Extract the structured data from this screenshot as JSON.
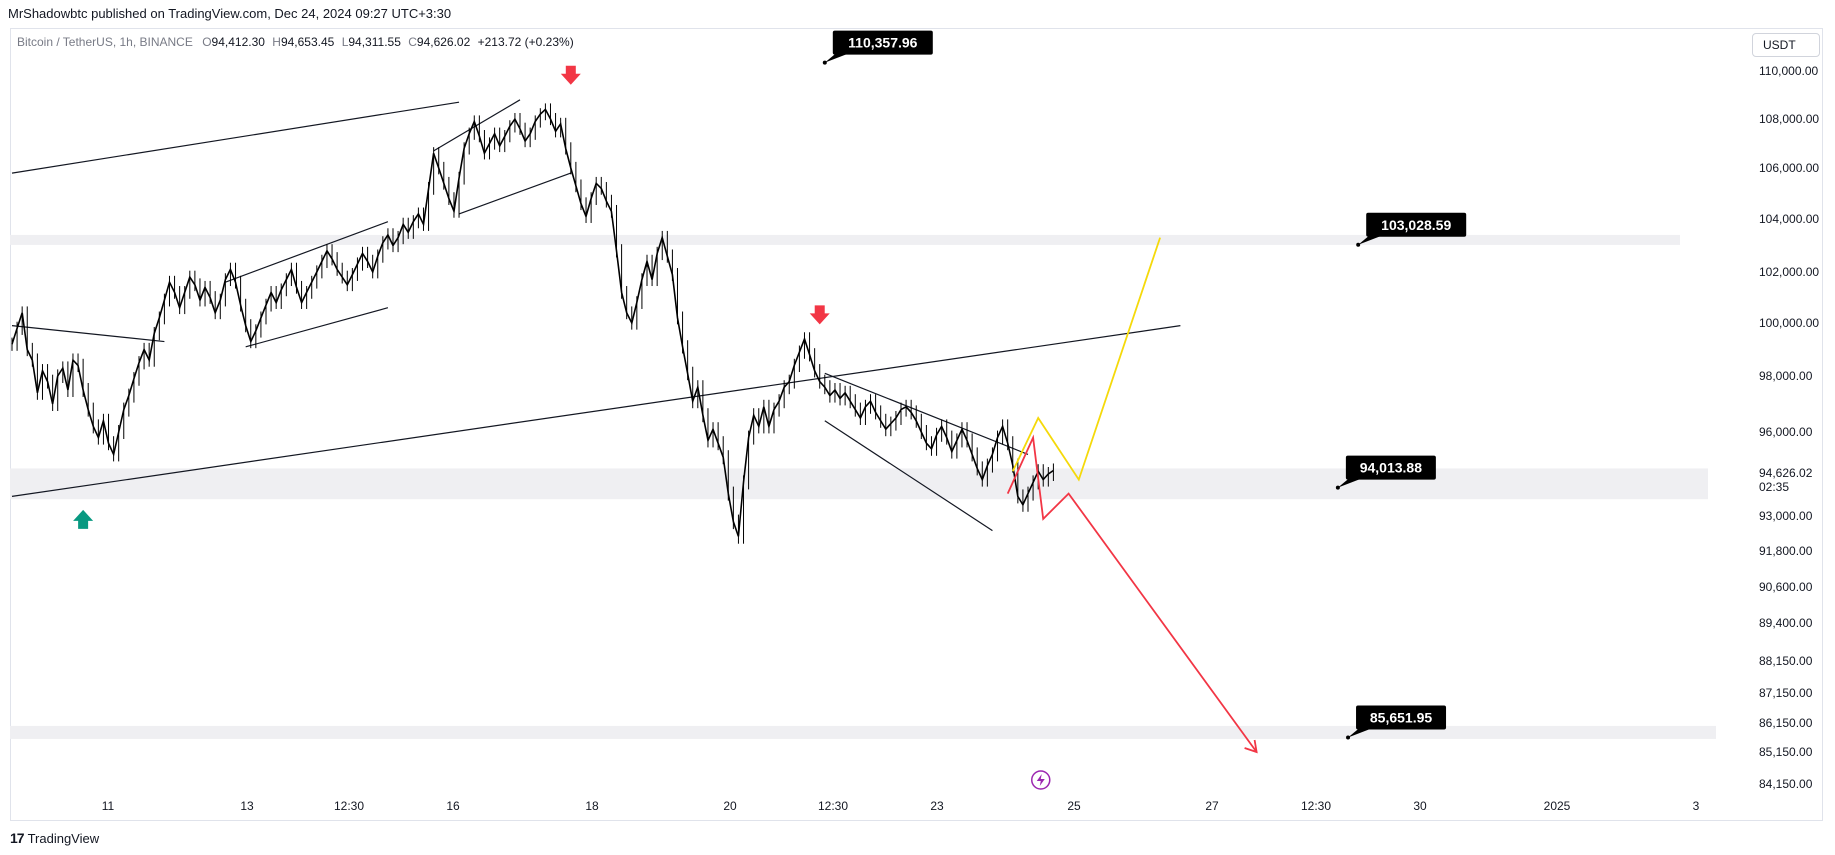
{
  "header": {
    "publish_line": "MrShadowbtc published on TradingView.com, Dec 24, 2024 09:27 UTC+3:30",
    "symbol": "Bitcoin / TetherUS, 1h, BINANCE",
    "o_label": "O",
    "o": "94,412.30",
    "h_label": "H",
    "h": "94,653.45",
    "l_label": "L",
    "l": "94,311.55",
    "c_label": "C",
    "c": "94,626.02",
    "change": "+213.72 (+0.23%)"
  },
  "toolbar": {
    "currency": "USDT"
  },
  "footer": {
    "brand": "TradingView",
    "logo_mark": "17"
  },
  "chart_data": {
    "type": "line",
    "title": "",
    "xlabel": "",
    "ylabel": "",
    "y_axis_ticks": [
      "110,000.00",
      "108,000.00",
      "106,000.00",
      "104,000.00",
      "102,000.00",
      "100,000.00",
      "98,000.00",
      "96,000.00",
      "93,000.00",
      "91,800.00",
      "90,600.00",
      "89,400.00",
      "88,150.00",
      "87,150.00",
      "86,150.00",
      "85,150.00",
      "84,150.00"
    ],
    "x_axis_ticks": [
      "11",
      "13",
      "12:30",
      "16",
      "18",
      "20",
      "12:30",
      "23",
      "25",
      "27",
      "12:30",
      "30",
      "2025",
      "3"
    ],
    "last_price": "94,626.02",
    "countdown": "02:35",
    "price_series": {
      "name": "",
      "values": [
        99200,
        99800,
        100400,
        99000,
        98600,
        97400,
        98200,
        97800,
        97000,
        98000,
        98300,
        97500,
        98600,
        98400,
        97500,
        96800,
        96200,
        95800,
        96400,
        95600,
        95200,
        96000,
        96800,
        97300,
        97900,
        98500,
        99000,
        98600,
        99600,
        100200,
        100900,
        101600,
        101200,
        100600,
        101200,
        101800,
        101500,
        100900,
        101400,
        101000,
        100400,
        100900,
        101700,
        102100,
        101600,
        100700,
        99900,
        99300,
        99700,
        100200,
        100700,
        101200,
        100800,
        101300,
        101700,
        102100,
        101400,
        100800,
        101200,
        101600,
        102000,
        102400,
        102800,
        102500,
        102100,
        101800,
        101500,
        101900,
        102300,
        102700,
        102400,
        102000,
        102600,
        103100,
        103400,
        103000,
        103300,
        103800,
        103500,
        103900,
        104200,
        103800,
        105200,
        106600,
        106000,
        105400,
        104800,
        104300,
        105600,
        106800,
        107400,
        107900,
        107300,
        106600,
        107000,
        107400,
        106900,
        107300,
        107700,
        108000,
        107600,
        107100,
        107400,
        107900,
        108200,
        108400,
        108000,
        107500,
        107800,
        106800,
        106000,
        105300,
        104600,
        104100,
        104800,
        105400,
        105200,
        104700,
        104300,
        102800,
        101200,
        100400,
        100000,
        100800,
        101700,
        102400,
        101700,
        102700,
        103300,
        102600,
        101900,
        100200,
        99100,
        98100,
        97100,
        97600,
        96600,
        95700,
        96100,
        95600,
        95100,
        93800,
        92800,
        92300,
        94200,
        95800,
        96600,
        96200,
        96900,
        96200,
        96800,
        97100,
        97600,
        97800,
        98400,
        98900,
        99400,
        98800,
        98200,
        97800,
        97600,
        97300,
        97500,
        97200,
        97400,
        97100,
        96800,
        96500,
        96900,
        97100,
        96700,
        96400,
        96100,
        96300,
        96500,
        96800,
        96900,
        96700,
        96400,
        96000,
        95600,
        95400,
        95900,
        96200,
        95800,
        95300,
        95700,
        96100,
        95700,
        95200,
        94700,
        94300,
        94800,
        95200,
        95800,
        96200,
        95600,
        94800,
        93700,
        93400,
        93800,
        94200,
        94600,
        94300,
        94500,
        94626
      ]
    },
    "trendlines": [
      {
        "from": {
          "x": 0,
          "y": 105800
        },
        "to": {
          "x": 88,
          "y": 108700
        }
      },
      {
        "from": {
          "x": 0,
          "y": 99900
        },
        "to": {
          "x": 30,
          "y": 99300
        }
      },
      {
        "from": {
          "x": 0,
          "y": 93700
        },
        "to": {
          "x": 230,
          "y": 99900
        }
      },
      {
        "from": {
          "x": 42,
          "y": 101600
        },
        "to": {
          "x": 74,
          "y": 103900
        }
      },
      {
        "from": {
          "x": 46,
          "y": 99100
        },
        "to": {
          "x": 74,
          "y": 100600
        }
      },
      {
        "from": {
          "x": 83,
          "y": 106700
        },
        "to": {
          "x": 100,
          "y": 108800
        }
      },
      {
        "from": {
          "x": 88,
          "y": 104200
        },
        "to": {
          "x": 110,
          "y": 105800
        }
      },
      {
        "from": {
          "x": 160,
          "y": 98100
        },
        "to": {
          "x": 200,
          "y": 95200
        }
      },
      {
        "from": {
          "x": 160,
          "y": 96400
        },
        "to": {
          "x": 193,
          "y": 92500
        }
      }
    ],
    "zones": [
      {
        "low": 103100,
        "high": 103400
      },
      {
        "low": 93600,
        "high": 94700
      },
      {
        "low": 85600,
        "high": 86050
      }
    ],
    "scenario_up": {
      "color": "#f5d90a",
      "points": [
        {
          "x": 197,
          "y": 94600
        },
        {
          "x": 202,
          "y": 96500
        },
        {
          "x": 210,
          "y": 94300
        },
        {
          "x": 226,
          "y": 103300
        }
      ]
    },
    "scenario_down": {
      "color": "#f23645",
      "points": [
        {
          "x": 196,
          "y": 93800
        },
        {
          "x": 201,
          "y": 95800
        },
        {
          "x": 203,
          "y": 92900
        },
        {
          "x": 208,
          "y": 93800
        },
        {
          "x": 245,
          "y": 85150
        }
      ]
    },
    "callouts": [
      {
        "label": "110,357.96",
        "x": 160,
        "y": 110350
      },
      {
        "label": "103,028.59",
        "x": 265,
        "y": 103028
      },
      {
        "label": "94,013.88",
        "x": 261,
        "y": 94013
      },
      {
        "label": "85,651.95",
        "x": 263,
        "y": 85651
      }
    ],
    "arrows": [
      {
        "direction": "down",
        "color": "#f23645",
        "x": 110,
        "y": 109800
      },
      {
        "direction": "down",
        "color": "#f23645",
        "x": 159,
        "y": 100300
      },
      {
        "direction": "up",
        "color": "#089981",
        "x": 14,
        "y": 92900
      }
    ],
    "event_marker": {
      "icon": "lightning-icon",
      "color": "#9c27b0",
      "x": 197
    },
    "colors": {
      "candles": "#000000",
      "zone": "#efeff2",
      "callout_bg": "#000000",
      "grid": "none"
    }
  }
}
